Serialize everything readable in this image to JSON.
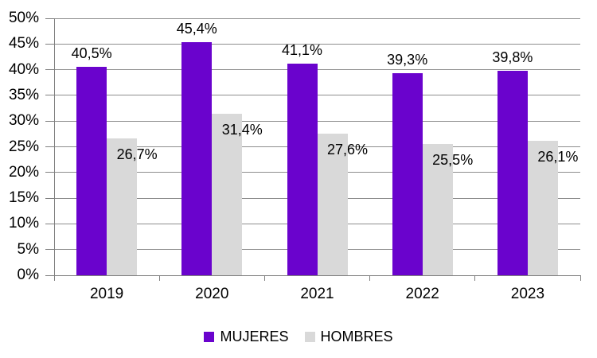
{
  "chart_data": {
    "type": "bar",
    "title": "",
    "xlabel": "",
    "ylabel": "",
    "categories": [
      "2019",
      "2020",
      "2021",
      "2022",
      "2023"
    ],
    "series": [
      {
        "name": "MUJERES",
        "color": "#6A03CD",
        "values": [
          40.5,
          45.4,
          41.1,
          39.3,
          39.8
        ],
        "labels": [
          "40,5%",
          "45,4%",
          "41,1%",
          "39,3%",
          "39,8%"
        ]
      },
      {
        "name": "HOMBRES",
        "color": "#D9D9D9",
        "values": [
          26.7,
          31.4,
          27.6,
          25.5,
          26.1
        ],
        "labels": [
          "26,7%",
          "31,4%",
          "27,6%",
          "25,5%",
          "26,1%"
        ]
      }
    ],
    "ylim": [
      0,
      50
    ],
    "ytick_step": 5,
    "ytick_labels": [
      "0%",
      "5%",
      "10%",
      "15%",
      "20%",
      "25%",
      "30%",
      "35%",
      "40%",
      "45%",
      "50%"
    ],
    "grid": true,
    "legend_position": "bottom",
    "decimal_separator": ",",
    "colors": {
      "background": "#FFFFFF",
      "gridline": "#8E8E8E",
      "axis": "#808080",
      "text": "#000000"
    }
  }
}
